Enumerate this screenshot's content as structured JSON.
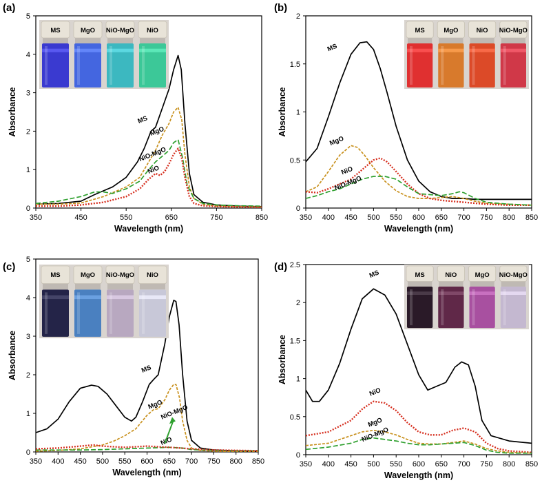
{
  "chart_data": [
    {
      "panel": "(a)",
      "type": "line",
      "xlabel": "Wavelength (nm)",
      "ylabel": "Absorbance",
      "xlim": [
        350,
        850
      ],
      "ylim": [
        0,
        5
      ],
      "xticks": [
        "350",
        "450",
        "550",
        "650",
        "750",
        "850"
      ],
      "yticks": [
        "0",
        "1",
        "2",
        "3",
        "4",
        "5"
      ],
      "vials": [
        {
          "label": "MS",
          "color": "#3a3ad0"
        },
        {
          "label": "MgO",
          "color": "#4466e0"
        },
        {
          "label": "NiO-MgO",
          "color": "#3cb8c0"
        },
        {
          "label": "NiO",
          "color": "#3cc898"
        }
      ],
      "series": [
        {
          "name": "MS",
          "label": "MS",
          "color": "#000000",
          "dash": "solid",
          "x": [
            350,
            400,
            450,
            480,
            500,
            520,
            550,
            575,
            590,
            605,
            615,
            630,
            645,
            655,
            665,
            672,
            680,
            690,
            700,
            720,
            750,
            800,
            850
          ],
          "y": [
            0.1,
            0.12,
            0.18,
            0.35,
            0.45,
            0.55,
            0.8,
            1.2,
            1.55,
            2.0,
            2.1,
            2.6,
            3.1,
            3.6,
            3.97,
            3.6,
            2.2,
            0.9,
            0.35,
            0.15,
            0.08,
            0.05,
            0.04
          ],
          "label_x": 588,
          "label_y": 2.25
        },
        {
          "name": "MgO",
          "label": "MgO",
          "color": "#c8901c",
          "dash": "4 2",
          "x": [
            350,
            400,
            450,
            500,
            550,
            580,
            600,
            615,
            630,
            645,
            655,
            665,
            673,
            680,
            690,
            700,
            720,
            750,
            800,
            850
          ],
          "y": [
            0.1,
            0.1,
            0.13,
            0.3,
            0.55,
            0.8,
            1.2,
            1.5,
            1.9,
            2.2,
            2.5,
            2.62,
            2.3,
            1.4,
            0.55,
            0.25,
            0.1,
            0.05,
            0.04,
            0.03
          ],
          "label_x": 620,
          "label_y": 1.95
        },
        {
          "name": "NiO-MgO",
          "label": "NiO-MgO",
          "color": "#2ea02e",
          "dash": "7 3",
          "x": [
            350,
            400,
            450,
            480,
            500,
            520,
            550,
            580,
            600,
            615,
            630,
            645,
            655,
            665,
            675,
            685,
            700,
            720,
            750,
            800,
            850
          ],
          "y": [
            0.12,
            0.18,
            0.3,
            0.42,
            0.42,
            0.38,
            0.5,
            0.7,
            1.0,
            1.2,
            1.35,
            1.5,
            1.7,
            1.78,
            1.3,
            0.6,
            0.25,
            0.12,
            0.08,
            0.06,
            0.05
          ],
          "label_x": 610,
          "label_y": 1.35
        },
        {
          "name": "NiO",
          "label": "NiO",
          "color": "#d63020",
          "dash": "2 2",
          "x": [
            350,
            400,
            450,
            500,
            550,
            580,
            600,
            615,
            625,
            635,
            645,
            655,
            665,
            673,
            680,
            690,
            700,
            720,
            750,
            800,
            850
          ],
          "y": [
            0.05,
            0.05,
            0.08,
            0.15,
            0.3,
            0.5,
            0.75,
            0.9,
            0.85,
            0.95,
            1.15,
            1.4,
            1.55,
            1.3,
            0.8,
            0.3,
            0.12,
            0.06,
            0.04,
            0.03,
            0.02
          ],
          "label_x": 612,
          "label_y": 0.95
        }
      ]
    },
    {
      "panel": "(b)",
      "type": "line",
      "xlabel": "Wavelength (nm)",
      "ylabel": "Absorbance",
      "xlim": [
        350,
        850
      ],
      "ylim": [
        0,
        2
      ],
      "xticks": [
        "350",
        "400",
        "450",
        "500",
        "550",
        "600",
        "650",
        "700",
        "750",
        "800",
        "850"
      ],
      "yticks": [
        "0",
        "0.5",
        "1",
        "1.5",
        "2"
      ],
      "vials": [
        {
          "label": "MS",
          "color": "#e03030"
        },
        {
          "label": "MgO",
          "color": "#d87a2c"
        },
        {
          "label": "NiO",
          "color": "#dc4a28"
        },
        {
          "label": "NiO-MgO",
          "color": "#d03848"
        }
      ],
      "series": [
        {
          "name": "MS",
          "label": "MS",
          "color": "#000000",
          "dash": "solid",
          "x": [
            350,
            375,
            400,
            425,
            450,
            470,
            485,
            500,
            515,
            530,
            550,
            575,
            600,
            625,
            650,
            675,
            700,
            725,
            750,
            800,
            850
          ],
          "y": [
            0.48,
            0.62,
            0.95,
            1.3,
            1.6,
            1.72,
            1.73,
            1.65,
            1.45,
            1.2,
            0.85,
            0.5,
            0.28,
            0.17,
            0.12,
            0.1,
            0.1,
            0.09,
            0.09,
            0.09,
            0.09
          ],
          "label_x": 410,
          "label_y": 1.65
        },
        {
          "name": "MgO",
          "label": "MgO",
          "color": "#c8901c",
          "dash": "4 2",
          "x": [
            350,
            375,
            400,
            425,
            450,
            465,
            480,
            500,
            525,
            550,
            575,
            600,
            625,
            650,
            675,
            700,
            725,
            750,
            800,
            850
          ],
          "y": [
            0.17,
            0.22,
            0.38,
            0.55,
            0.65,
            0.63,
            0.55,
            0.42,
            0.28,
            0.18,
            0.12,
            0.1,
            0.1,
            0.11,
            0.12,
            0.1,
            0.07,
            0.05,
            0.04,
            0.03
          ],
          "label_x": 420,
          "label_y": 0.68
        },
        {
          "name": "NiO",
          "label": "NiO",
          "color": "#d63020",
          "dash": "2 2",
          "x": [
            350,
            375,
            400,
            425,
            450,
            475,
            500,
            515,
            530,
            550,
            575,
            600,
            625,
            650,
            675,
            700,
            725,
            750,
            800,
            850
          ],
          "y": [
            0.17,
            0.16,
            0.2,
            0.25,
            0.3,
            0.4,
            0.5,
            0.52,
            0.48,
            0.38,
            0.25,
            0.15,
            0.1,
            0.08,
            0.07,
            0.06,
            0.05,
            0.04,
            0.03,
            0.03
          ],
          "label_x": 443,
          "label_y": 0.37
        },
        {
          "name": "NiO-MgO",
          "label": "NiO-MgO",
          "color": "#2ea02e",
          "dash": "7 3",
          "x": [
            350,
            375,
            400,
            425,
            450,
            475,
            500,
            525,
            550,
            575,
            600,
            625,
            650,
            675,
            690,
            700,
            725,
            750,
            800,
            850
          ],
          "y": [
            0.1,
            0.13,
            0.17,
            0.2,
            0.25,
            0.3,
            0.33,
            0.33,
            0.3,
            0.22,
            0.15,
            0.14,
            0.13,
            0.15,
            0.17,
            0.16,
            0.1,
            0.06,
            0.04,
            0.03
          ],
          "label_x": 445,
          "label_y": 0.24
        }
      ]
    },
    {
      "panel": "(c)",
      "type": "line",
      "xlabel": "Wavelength (nm)",
      "ylabel": "Absorbance",
      "xlim": [
        350,
        850
      ],
      "ylim": [
        0,
        5
      ],
      "xticks": [
        "350",
        "400",
        "450",
        "500",
        "550",
        "600",
        "650",
        "700",
        "750",
        "800",
        "850"
      ],
      "yticks": [
        "0",
        "1",
        "2",
        "3",
        "4",
        "5"
      ],
      "vials": [
        {
          "label": "MS",
          "color": "#242448"
        },
        {
          "label": "MgO",
          "color": "#4a80c0"
        },
        {
          "label": "NiO-MgO",
          "color": "#b8a8c0"
        },
        {
          "label": "NiO",
          "color": "#c8c8d8"
        }
      ],
      "series": [
        {
          "name": "MS",
          "label": "MS",
          "color": "#000000",
          "dash": "solid",
          "x": [
            350,
            375,
            400,
            425,
            450,
            475,
            490,
            510,
            530,
            550,
            565,
            575,
            590,
            605,
            615,
            625,
            640,
            650,
            660,
            665,
            672,
            680,
            690,
            700,
            720,
            750,
            800,
            850
          ],
          "y": [
            0.5,
            0.6,
            0.85,
            1.3,
            1.65,
            1.73,
            1.7,
            1.5,
            1.2,
            0.9,
            0.8,
            0.9,
            1.3,
            1.75,
            1.88,
            2.0,
            2.8,
            3.5,
            3.93,
            3.9,
            3.3,
            2.0,
            0.8,
            0.3,
            0.1,
            0.05,
            0.03,
            0.02
          ],
          "label_x": 600,
          "label_y": 2.1
        },
        {
          "name": "MgO",
          "label": "MgO",
          "color": "#c8901c",
          "dash": "4 2",
          "x": [
            350,
            400,
            450,
            500,
            525,
            550,
            575,
            600,
            615,
            625,
            640,
            650,
            660,
            665,
            673,
            680,
            690,
            700,
            720,
            750,
            800,
            850
          ],
          "y": [
            0.02,
            0.04,
            0.08,
            0.18,
            0.28,
            0.42,
            0.6,
            0.95,
            1.1,
            1.12,
            1.35,
            1.6,
            1.75,
            1.75,
            1.4,
            0.8,
            0.3,
            0.1,
            0.04,
            0.02,
            0.01,
            0.01
          ],
          "label_x": 620,
          "label_y": 1.18
        },
        {
          "name": "NiO-MgO",
          "label": "NiO-MgO",
          "color": "#2ea02e",
          "dash": "7 3",
          "x": [
            350,
            400,
            450,
            500,
            550,
            600,
            650,
            680,
            700,
            750,
            800,
            850
          ],
          "y": [
            0.05,
            0.05,
            0.05,
            0.06,
            0.08,
            0.1,
            0.12,
            0.1,
            0.06,
            0.04,
            0.03,
            0.03
          ],
          "label_x": 663,
          "label_y": 0.98
        },
        {
          "name": "NiO",
          "label": "NiO",
          "color": "#d63020",
          "dash": "2 2",
          "x": [
            350,
            400,
            450,
            480,
            500,
            550,
            600,
            650,
            700,
            750,
            800,
            850
          ],
          "y": [
            0.08,
            0.1,
            0.15,
            0.18,
            0.15,
            0.12,
            0.15,
            0.12,
            0.08,
            0.05,
            0.04,
            0.03
          ],
          "label_x": 645,
          "label_y": 0.23
        }
      ]
    },
    {
      "panel": "(d)",
      "type": "line",
      "xlabel": "Wavelength (nm)",
      "ylabel": "Absorbance",
      "xlim": [
        350,
        850
      ],
      "ylim": [
        0,
        2.5
      ],
      "xticks": [
        "350",
        "400",
        "450",
        "500",
        "550",
        "600",
        "650",
        "700",
        "750",
        "800",
        "850"
      ],
      "yticks": [
        "0",
        "0.5",
        "1",
        "1.5",
        "2",
        "2.5"
      ],
      "vials": [
        {
          "label": "MS",
          "color": "#2a1a28"
        },
        {
          "label": "NiO",
          "color": "#602848"
        },
        {
          "label": "MgO",
          "color": "#a850a0"
        },
        {
          "label": "NiO-MgO",
          "color": "#c4b8d0"
        }
      ],
      "series": [
        {
          "name": "MS",
          "label": "MS",
          "color": "#000000",
          "dash": "solid",
          "x": [
            350,
            365,
            380,
            400,
            425,
            450,
            475,
            500,
            525,
            550,
            575,
            600,
            620,
            640,
            660,
            680,
            695,
            710,
            725,
            740,
            760,
            800,
            850
          ],
          "y": [
            0.85,
            0.7,
            0.7,
            0.85,
            1.2,
            1.65,
            2.05,
            2.18,
            2.1,
            1.85,
            1.45,
            1.05,
            0.85,
            0.9,
            0.95,
            1.15,
            1.22,
            1.18,
            0.9,
            0.45,
            0.25,
            0.18,
            0.15
          ],
          "label_x": 503,
          "label_y": 2.35
        },
        {
          "name": "NiO",
          "label": "NiO",
          "color": "#d63020",
          "dash": "2 2",
          "x": [
            350,
            400,
            450,
            475,
            500,
            525,
            550,
            575,
            600,
            625,
            650,
            675,
            700,
            725,
            750,
            775,
            800,
            850
          ],
          "y": [
            0.25,
            0.3,
            0.45,
            0.6,
            0.7,
            0.68,
            0.58,
            0.42,
            0.3,
            0.26,
            0.26,
            0.32,
            0.35,
            0.3,
            0.15,
            0.08,
            0.05,
            0.03
          ],
          "label_x": 505,
          "label_y": 0.8
        },
        {
          "name": "MgO",
          "label": "MgO",
          "color": "#c8901c",
          "dash": "4 2",
          "x": [
            350,
            400,
            450,
            475,
            500,
            525,
            550,
            575,
            600,
            625,
            650,
            675,
            700,
            725,
            750,
            775,
            800,
            850
          ],
          "y": [
            0.12,
            0.15,
            0.25,
            0.3,
            0.32,
            0.3,
            0.26,
            0.2,
            0.15,
            0.14,
            0.14,
            0.16,
            0.18,
            0.14,
            0.08,
            0.05,
            0.03,
            0.02
          ],
          "label_x": 505,
          "label_y": 0.4
        },
        {
          "name": "NiO-MgO",
          "label": "NiO-MgO",
          "color": "#2ea02e",
          "dash": "7 3",
          "x": [
            350,
            400,
            450,
            475,
            500,
            525,
            550,
            575,
            600,
            625,
            650,
            675,
            700,
            725,
            750,
            775,
            800,
            850
          ],
          "y": [
            0.07,
            0.1,
            0.15,
            0.2,
            0.22,
            0.2,
            0.18,
            0.15,
            0.13,
            0.13,
            0.14,
            0.15,
            0.16,
            0.12,
            0.06,
            0.03,
            0.02,
            0.02
          ],
          "label_x": 505,
          "label_y": 0.24
        }
      ]
    }
  ]
}
